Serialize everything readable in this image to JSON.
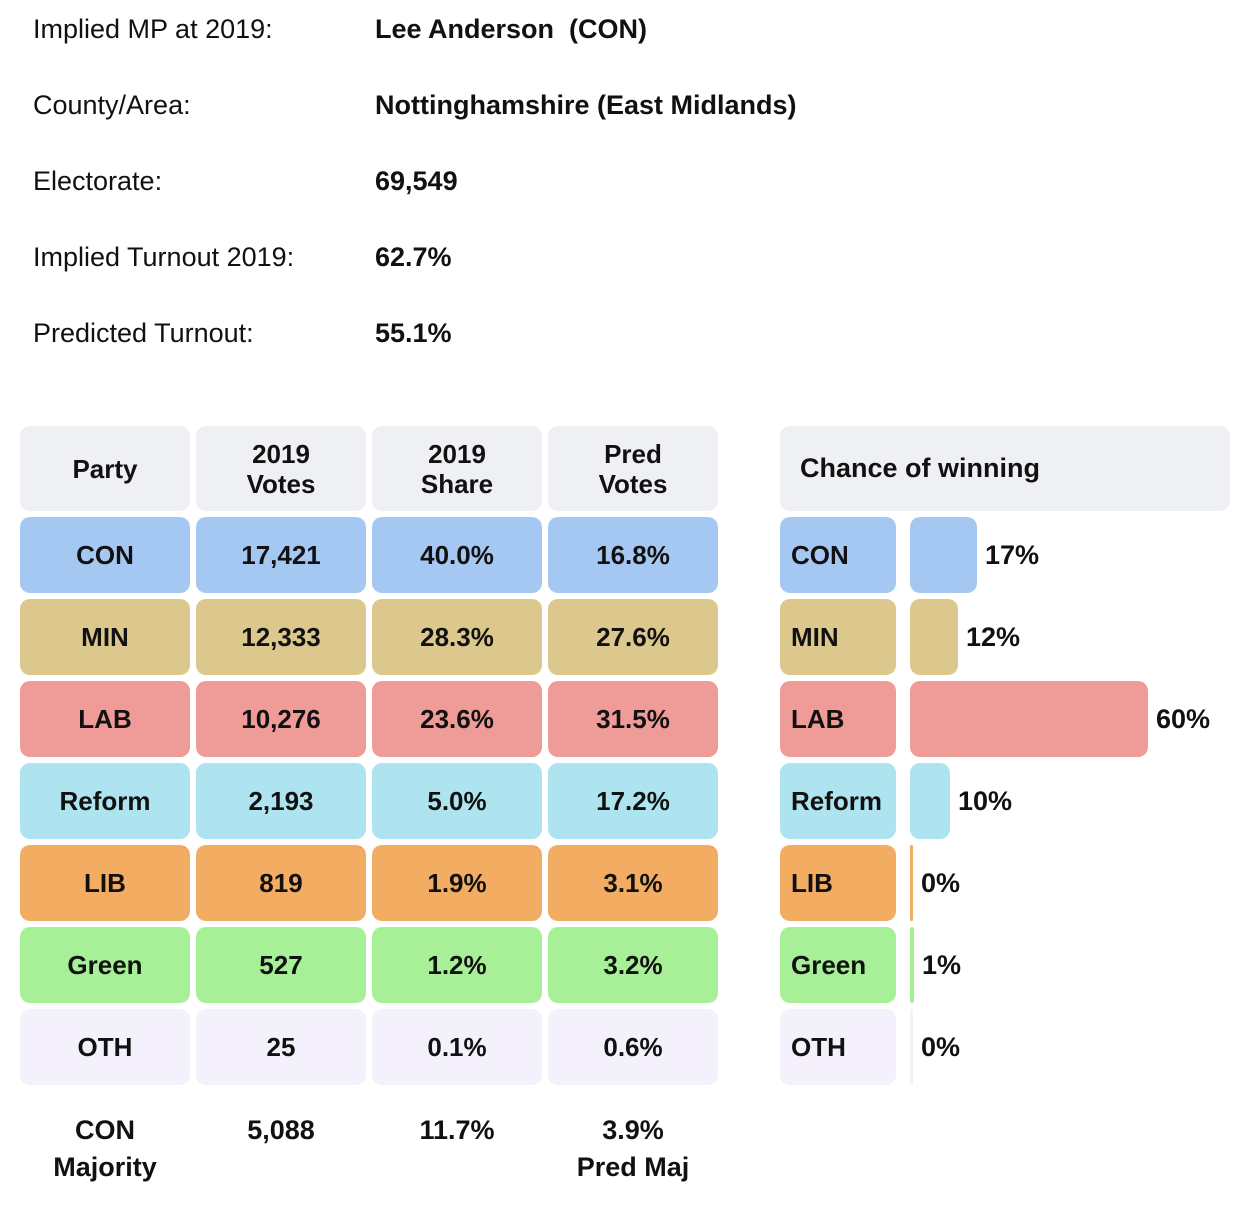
{
  "page": {
    "background": "#ffffff",
    "text_color": "#111111",
    "header_bg": "#eff0f4"
  },
  "info": {
    "rows": [
      {
        "label": "Implied MP at 2019:",
        "value": "Lee Anderson  (CON)"
      },
      {
        "label": "County/Area:",
        "value": "Nottinghamshire (East Midlands)"
      },
      {
        "label": "Electorate:",
        "value": "69,549"
      },
      {
        "label": "Implied Turnout 2019:",
        "value": "62.7%"
      },
      {
        "label": "Predicted Turnout:",
        "value": "55.1%"
      }
    ]
  },
  "results_table": {
    "headers": [
      {
        "line1": "Party",
        "line2": ""
      },
      {
        "line1": "2019",
        "line2": "Votes"
      },
      {
        "line1": "2019",
        "line2": "Share"
      },
      {
        "line1": "Pred",
        "line2": "Votes"
      }
    ],
    "rows": [
      {
        "party": "CON",
        "votes_2019": "17,421",
        "share_2019": "40.0%",
        "pred_votes": "16.8%",
        "color": "#a5c8f3"
      },
      {
        "party": "MIN",
        "votes_2019": "12,333",
        "share_2019": "28.3%",
        "pred_votes": "27.6%",
        "color": "#dcc88c"
      },
      {
        "party": "LAB",
        "votes_2019": "10,276",
        "share_2019": "23.6%",
        "pred_votes": "31.5%",
        "color": "#ef9b98"
      },
      {
        "party": "Reform",
        "votes_2019": "2,193",
        "share_2019": "5.0%",
        "pred_votes": "17.2%",
        "color": "#aee4ef"
      },
      {
        "party": "LIB",
        "votes_2019": "819",
        "share_2019": "1.9%",
        "pred_votes": "3.1%",
        "color": "#f2ad62"
      },
      {
        "party": "Green",
        "votes_2019": "527",
        "share_2019": "1.2%",
        "pred_votes": "3.2%",
        "color": "#a8f098"
      },
      {
        "party": "OTH",
        "votes_2019": "25",
        "share_2019": "0.1%",
        "pred_votes": "0.6%",
        "color": "#f4f1fc"
      }
    ],
    "footer": {
      "majority_party": "CON",
      "majority_word": "Majority",
      "majority_votes": "5,088",
      "majority_share": "11.7%",
      "pred_majority": "3.9%",
      "pred_majority_label": "Pred Maj"
    }
  },
  "chance_panel": {
    "title": "Chance of winning",
    "bars": [
      {
        "party": "CON",
        "pct": 17,
        "label": "17%",
        "color": "#a5c8f3"
      },
      {
        "party": "MIN",
        "pct": 12,
        "label": "12%",
        "color": "#dcc88c"
      },
      {
        "party": "LAB",
        "pct": 60,
        "label": "60%",
        "color": "#ef9b98"
      },
      {
        "party": "Reform",
        "pct": 10,
        "label": "10%",
        "color": "#aee4ef"
      },
      {
        "party": "LIB",
        "pct": 0,
        "label": "0%",
        "color": "#f2ad62"
      },
      {
        "party": "Green",
        "pct": 1,
        "label": "1%",
        "color": "#a8f098"
      },
      {
        "party": "OTH",
        "pct": 0,
        "label": "0%",
        "color": "#f4f1fc"
      }
    ]
  },
  "chart_data": [
    {
      "type": "table",
      "title": "Constituency result table",
      "columns": [
        "Party",
        "2019 Votes",
        "2019 Share",
        "Pred Votes"
      ],
      "rows": [
        [
          "CON",
          "17,421",
          "40.0%",
          "16.8%"
        ],
        [
          "MIN",
          "12,333",
          "28.3%",
          "27.6%"
        ],
        [
          "LAB",
          "10,276",
          "23.6%",
          "31.5%"
        ],
        [
          "Reform",
          "2,193",
          "5.0%",
          "17.2%"
        ],
        [
          "LIB",
          "819",
          "1.9%",
          "3.1%"
        ],
        [
          "Green",
          "527",
          "1.2%",
          "3.2%"
        ],
        [
          "OTH",
          "25",
          "0.1%",
          "0.6%"
        ]
      ],
      "footer_row": [
        "CON Majority",
        "5,088",
        "11.7%",
        "3.9% Pred Maj"
      ]
    },
    {
      "type": "bar",
      "orientation": "horizontal",
      "title": "Chance of winning",
      "categories": [
        "CON",
        "MIN",
        "LAB",
        "Reform",
        "LIB",
        "Green",
        "OTH"
      ],
      "values": [
        17,
        12,
        60,
        10,
        0,
        1,
        0
      ],
      "value_labels": [
        "17%",
        "12%",
        "60%",
        "10%",
        "0%",
        "1%",
        "0%"
      ],
      "bar_colors": [
        "#a5c8f3",
        "#dcc88c",
        "#ef9b98",
        "#aee4ef",
        "#f2ad62",
        "#a8f098",
        "#f4f1fc"
      ],
      "xlabel": "",
      "ylabel": "",
      "xlim": [
        0,
        80
      ],
      "grid": false,
      "axes_hidden": true,
      "legend": "none"
    }
  ]
}
